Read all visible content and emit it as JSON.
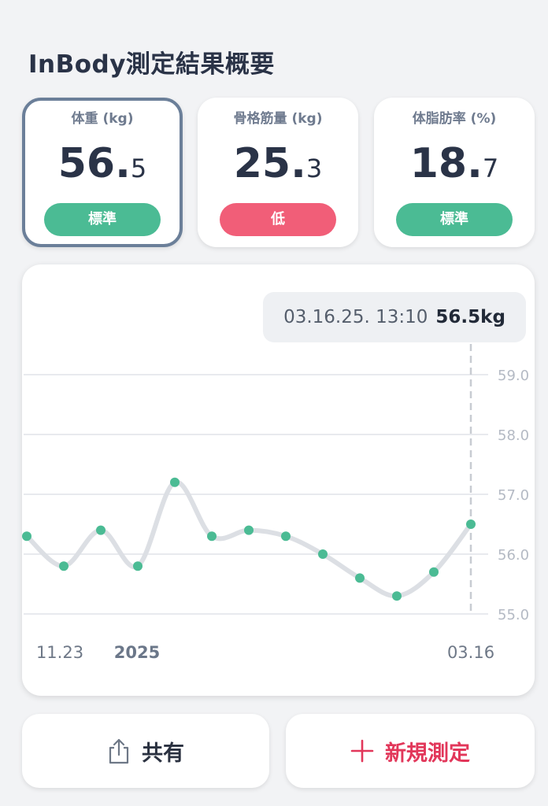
{
  "header": {
    "title": "InBody測定結果概要"
  },
  "metrics": [
    {
      "label": "体重 (kg)",
      "int": "56.",
      "dec": "5",
      "status": "標準",
      "status_color": "#4bbb94",
      "selected": true
    },
    {
      "label": "骨格筋量 (kg)",
      "int": "25.",
      "dec": "3",
      "status": "低",
      "status_color": "#f15e78",
      "selected": false
    },
    {
      "label": "体脂肪率 (%)",
      "int": "18.",
      "dec": "7",
      "status": "標準",
      "status_color": "#4bbb94",
      "selected": false
    }
  ],
  "tooltip": {
    "datetime": "03.16.25. 13:10",
    "value": "56.5kg"
  },
  "chart_data": {
    "type": "line",
    "y_ticks": [
      "59.0",
      "58.0",
      "57.0",
      "56.0",
      "55.0"
    ],
    "ylim": [
      55.0,
      59.0
    ],
    "x_labels": [
      {
        "text": "11.23",
        "bold": false
      },
      {
        "text": "2025",
        "bold": true
      },
      {
        "text": "03.16",
        "bold": false
      }
    ],
    "values": [
      56.3,
      55.8,
      56.4,
      55.8,
      57.2,
      56.3,
      56.4,
      56.3,
      56.0,
      55.6,
      55.3,
      55.7,
      56.5
    ],
    "line_color": "#dcdfe4",
    "point_color": "#4bbb94",
    "grid": true,
    "selected_index": 12
  },
  "actions": {
    "share_label": "共有",
    "new_label": "新規測定",
    "new_color": "#e2375a"
  }
}
